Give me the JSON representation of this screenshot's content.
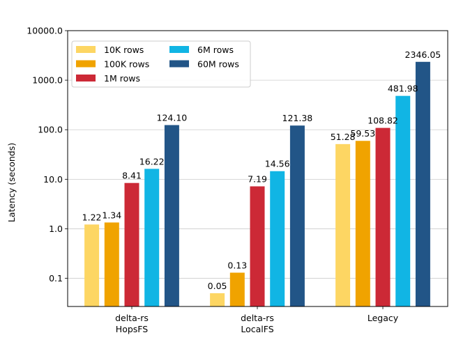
{
  "chart_data": {
    "type": "bar",
    "title": "",
    "xlabel": "",
    "ylabel": "Latency (seconds)",
    "yscale": "log",
    "ylim": [
      0.027,
      10000
    ],
    "yticks": [
      0.1,
      1,
      10,
      100,
      1000,
      10000
    ],
    "ytick_labels": [
      "0.1",
      "1.0",
      "10.0",
      "100.0",
      "1000.0",
      "10000.0"
    ],
    "grid": "horizontal",
    "legend_position": "top-left",
    "legend_columns": 2,
    "categories": [
      "delta-rs\nHopsFS",
      "delta-rs\nLocalFS",
      "Legacy"
    ],
    "series": [
      {
        "name": "10K rows",
        "color": "#fdd663",
        "values": [
          1.22,
          0.05,
          51.28
        ],
        "labels": [
          "1.22",
          "0.05",
          "51.28"
        ]
      },
      {
        "name": "100K rows",
        "color": "#f0a300",
        "values": [
          1.34,
          0.13,
          59.53
        ],
        "labels": [
          "1.34",
          "0.13",
          "59.53"
        ]
      },
      {
        "name": "1M rows",
        "color": "#cc2936",
        "values": [
          8.41,
          7.19,
          108.82
        ],
        "labels": [
          "8.41",
          "7.19",
          "108.82"
        ]
      },
      {
        "name": "6M rows",
        "color": "#11b5e4",
        "values": [
          16.22,
          14.56,
          481.98
        ],
        "labels": [
          "16.22",
          "14.56",
          "481.98"
        ]
      },
      {
        "name": "60M rows",
        "color": "#225587",
        "values": [
          124.1,
          121.38,
          2346.05
        ],
        "labels": [
          "124.10",
          "121.38",
          "2346.05"
        ]
      }
    ]
  }
}
